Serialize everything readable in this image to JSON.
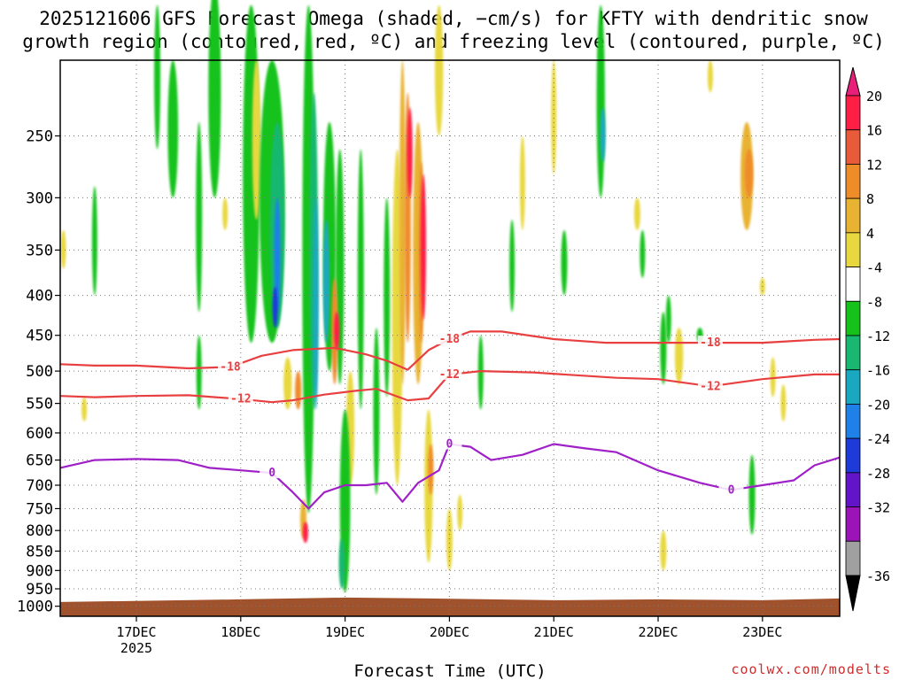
{
  "title_line1": "2025121606 GFS Forecast Omega (shaded, −cm/s) for KFTY with dendritic snow",
  "title_line2": "growth region (contoured, red, ºC) and freezing level (contoured, purple, ºC)",
  "credit": "coolwx.com/modelts",
  "chart_data": {
    "type": "heatmap",
    "xlabel": "Forecast Time (UTC)",
    "x_unit": "days since 2025-12-16 00Z",
    "xlim": [
      0.27,
      7.74
    ],
    "x_ticks": [
      {
        "value": 1,
        "label": "17DEC",
        "sublabel": "2025"
      },
      {
        "value": 2,
        "label": "18DEC"
      },
      {
        "value": 3,
        "label": "19DEC"
      },
      {
        "value": 4,
        "label": "20DEC"
      },
      {
        "value": 5,
        "label": "21DEC"
      },
      {
        "value": 6,
        "label": "22DEC"
      },
      {
        "value": 7,
        "label": "23DEC"
      }
    ],
    "ylabel": "",
    "y_scale": "log",
    "ylim": [
      1030,
      200
    ],
    "y_ticks": [
      250,
      300,
      350,
      400,
      450,
      500,
      550,
      600,
      650,
      700,
      750,
      800,
      850,
      900,
      950,
      1000
    ],
    "grid": true,
    "colorbar": {
      "ticks": [
        20,
        16,
        12,
        8,
        4,
        -4,
        -8,
        -12,
        -16,
        -20,
        -24,
        -28,
        -32,
        -36
      ],
      "colors": [
        "#ff1e46",
        "#e85a3a",
        "#ef8c2a",
        "#e8b232",
        "#e8d840",
        "#ffffff",
        "#16c21a",
        "#18b870",
        "#1aa8c0",
        "#1f80e8",
        "#1e3ad8",
        "#6414c8",
        "#9b14b8",
        "#a0a0a0"
      ],
      "top_color": "#e8207a",
      "bottom_color": "#000000"
    },
    "contours": [
      {
        "name": "-18",
        "color": "#e84040",
        "label": "-18",
        "x": [
          0.27,
          0.6,
          1.0,
          1.5,
          1.9,
          2.2,
          2.5,
          2.9,
          3.2,
          3.4,
          3.6,
          3.8,
          4.0,
          4.2,
          4.5,
          5.0,
          5.5,
          6.0,
          6.5,
          7.0,
          7.5,
          7.74
        ],
        "y": [
          490,
          492,
          492,
          496,
          494,
          478,
          470,
          467,
          476,
          485,
          498,
          470,
          455,
          445,
          445,
          455,
          460,
          460,
          460,
          460,
          456,
          455
        ]
      },
      {
        "name": "-12",
        "color": "#e84040",
        "label": "-12",
        "x": [
          0.27,
          0.6,
          1.0,
          1.5,
          2.0,
          2.3,
          2.5,
          2.8,
          3.1,
          3.3,
          3.6,
          3.8,
          4.0,
          4.3,
          4.8,
          5.2,
          5.6,
          6.0,
          6.5,
          7.0,
          7.5,
          7.74
        ],
        "y": [
          538,
          540,
          538,
          537,
          543,
          548,
          545,
          536,
          530,
          527,
          545,
          542,
          505,
          500,
          502,
          506,
          510,
          512,
          523,
          512,
          505,
          505
        ]
      },
      {
        "name": "0",
        "color": "#a020c8",
        "label": "0",
        "x": [
          0.27,
          0.6,
          1.0,
          1.4,
          1.7,
          2.0,
          2.3,
          2.5,
          2.65,
          2.8,
          3.0,
          3.2,
          3.4,
          3.55,
          3.7,
          3.9,
          4.0,
          4.2,
          4.4,
          4.7,
          5.0,
          5.3,
          5.6,
          6.0,
          6.4,
          6.7,
          7.0,
          7.3,
          7.5,
          7.74
        ],
        "y": [
          665,
          650,
          648,
          650,
          665,
          670,
          675,
          715,
          750,
          715,
          700,
          700,
          695,
          735,
          695,
          670,
          620,
          625,
          650,
          640,
          620,
          628,
          635,
          670,
          695,
          710,
          700,
          690,
          660,
          645
        ]
      }
    ],
    "surface_pressure": 980
  }
}
